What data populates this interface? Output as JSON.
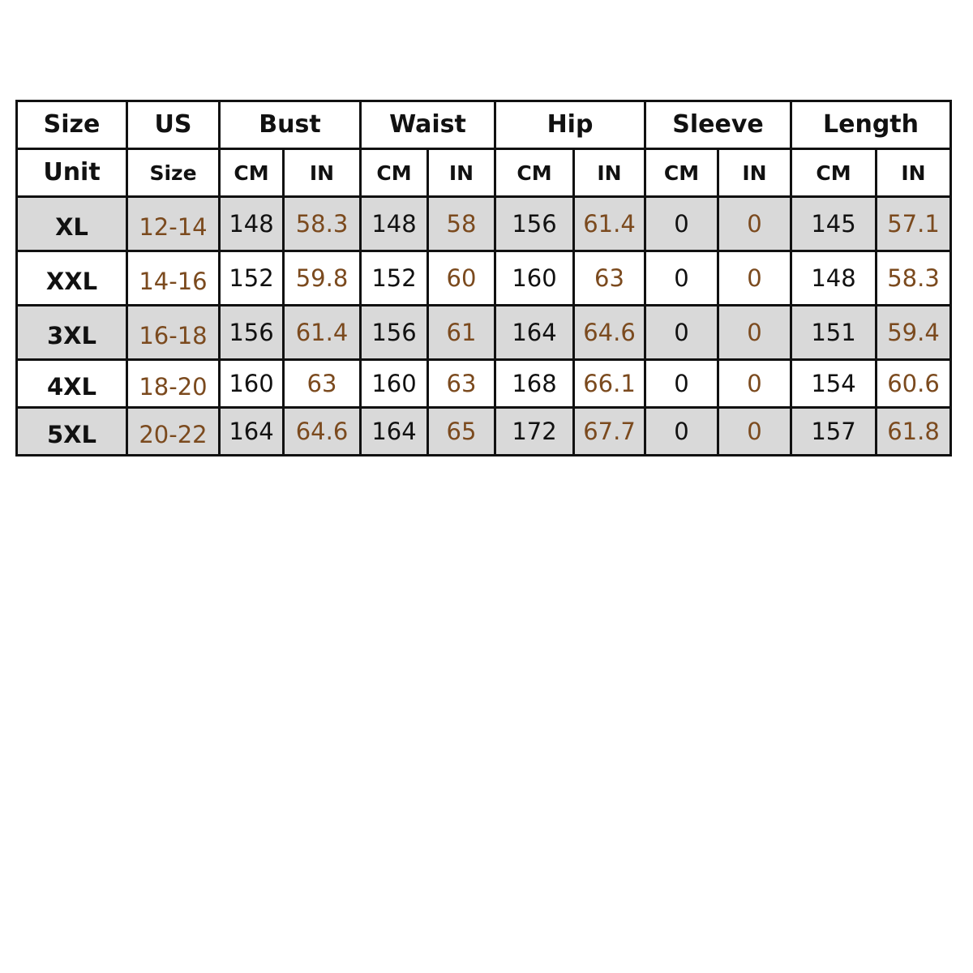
{
  "header": {
    "groups": [
      "Size",
      "US",
      "Bust",
      "Waist",
      "Hip",
      "Sleeve",
      "Length"
    ],
    "unit_label": "Unit",
    "us_sub": "Size",
    "units": [
      "CM",
      "IN"
    ]
  },
  "colors": {
    "brown": "#7b4a1e",
    "row_shade": "#d9d9d9"
  },
  "rows": [
    {
      "size": "XL",
      "us": "12-14",
      "values": [
        "148",
        "58.3",
        "148",
        "58",
        "156",
        "61.4",
        "0",
        "0",
        "145",
        "57.1"
      ]
    },
    {
      "size": "XXL",
      "us": "14-16",
      "values": [
        "152",
        "59.8",
        "152",
        "60",
        "160",
        "63",
        "0",
        "0",
        "148",
        "58.3"
      ]
    },
    {
      "size": "3XL",
      "us": "16-18",
      "values": [
        "156",
        "61.4",
        "156",
        "61",
        "164",
        "64.6",
        "0",
        "0",
        "151",
        "59.4"
      ]
    },
    {
      "size": "4XL",
      "us": "18-20",
      "values": [
        "160",
        "63",
        "160",
        "63",
        "168",
        "66.1",
        "0",
        "0",
        "154",
        "60.6"
      ]
    },
    {
      "size": "5XL",
      "us": "20-22",
      "values": [
        "164",
        "64.6",
        "164",
        "65",
        "172",
        "67.7",
        "0",
        "0",
        "157",
        "61.8"
      ]
    }
  ]
}
